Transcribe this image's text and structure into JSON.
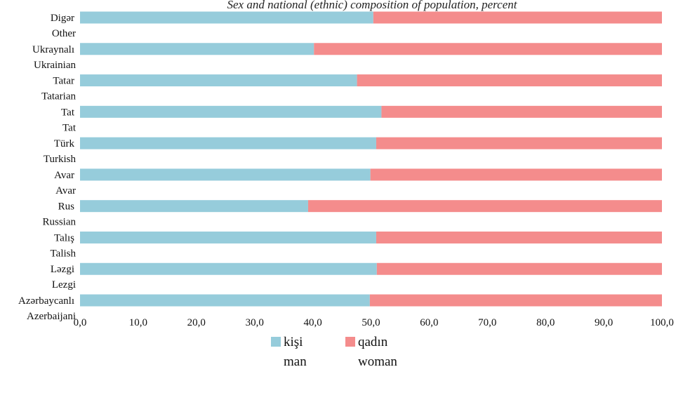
{
  "chart_data": {
    "type": "bar",
    "orientation": "horizontal",
    "stacked": true,
    "title": "Sex and national (ethnic) composition of population, percent",
    "categories": [
      {
        "az": "Azərbaycanlı",
        "en": "Azerbaijani"
      },
      {
        "az": "Ləzgi",
        "en": "Lezgi"
      },
      {
        "az": "Talış",
        "en": "Talish"
      },
      {
        "az": "Rus",
        "en": "Russian"
      },
      {
        "az": "Avar",
        "en": "Avar"
      },
      {
        "az": "Türk",
        "en": "Turkish"
      },
      {
        "az": "Tat",
        "en": "Tat"
      },
      {
        "az": "Tatar",
        "en": "Tatarian"
      },
      {
        "az": "Ukraynalı",
        "en": "Ukrainian"
      },
      {
        "az": "Digər",
        "en": "Other"
      }
    ],
    "series": [
      {
        "name": "kişi",
        "name_en": "man",
        "color": "#96ccdb",
        "values": [
          49.8,
          51.0,
          50.9,
          39.2,
          49.9,
          50.9,
          51.8,
          47.6,
          40.2,
          50.4
        ]
      },
      {
        "name": "qadın",
        "name_en": "woman",
        "color": "#f48c8c",
        "values": [
          50.2,
          49.0,
          49.1,
          60.8,
          50.1,
          49.1,
          48.2,
          52.4,
          59.8,
          49.6
        ]
      }
    ],
    "xlim": [
      0,
      100
    ],
    "xticks": [
      "0,0",
      "10,0",
      "20,0",
      "30,0",
      "40,0",
      "50,0",
      "60,0",
      "70,0",
      "80,0",
      "90,0",
      "100,0"
    ],
    "grid": false,
    "legend_position": "bottom"
  }
}
